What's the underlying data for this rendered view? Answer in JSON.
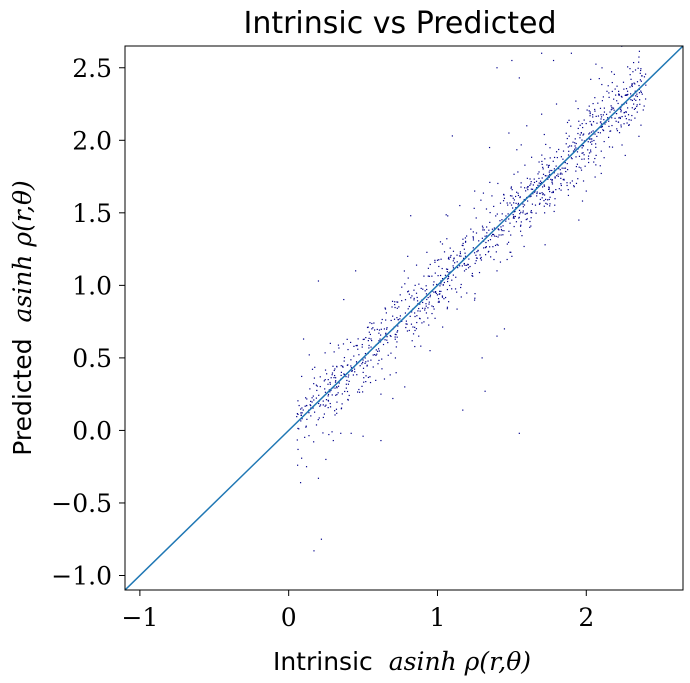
{
  "chart_data": {
    "type": "scatter",
    "title": "Intrinsic vs Predicted",
    "xlabel": {
      "prefix": "Intrinsic",
      "math": "asinh ρ(r,θ)"
    },
    "ylabel": {
      "prefix": "Predicted",
      "math": "asinh ρ(r,θ)"
    },
    "xlim": [
      -1.1,
      2.65
    ],
    "ylim": [
      -1.1,
      2.65
    ],
    "xticks": [
      {
        "value": -1,
        "label": "−1"
      },
      {
        "value": 0,
        "label": "0"
      },
      {
        "value": 1,
        "label": "1"
      },
      {
        "value": 2,
        "label": "2"
      }
    ],
    "yticks": [
      {
        "value": -1.0,
        "label": "−1.0"
      },
      {
        "value": -0.5,
        "label": "−0.5"
      },
      {
        "value": 0.0,
        "label": "0.0"
      },
      {
        "value": 0.5,
        "label": "0.5"
      },
      {
        "value": 1.0,
        "label": "1.0"
      },
      {
        "value": 1.5,
        "label": "1.5"
      },
      {
        "value": 2.0,
        "label": "2.0"
      },
      {
        "value": 2.5,
        "label": "2.5"
      }
    ],
    "grid": false,
    "reference_line": {
      "from": [
        -1.1,
        -1.1
      ],
      "to": [
        2.65,
        2.65
      ],
      "color": "#1f77b4"
    },
    "points_color": "#00008b",
    "points": [
      [
        0.06,
        -0.24
      ],
      [
        0.08,
        -0.36
      ],
      [
        0.12,
        -0.25
      ],
      [
        0.17,
        -0.83
      ],
      [
        0.22,
        -0.75
      ],
      [
        0.2,
        -0.33
      ],
      [
        0.25,
        -0.2
      ],
      [
        0.3,
        -0.07
      ],
      [
        0.35,
        -0.02
      ],
      [
        0.42,
        -0.02
      ],
      [
        0.5,
        -0.04
      ],
      [
        0.62,
        -0.07
      ],
      [
        1.17,
        0.14
      ],
      [
        1.55,
        -0.02
      ],
      [
        0.2,
        1.03
      ],
      [
        0.28,
        0.6
      ],
      [
        0.1,
        0.63
      ],
      [
        0.45,
        1.1
      ],
      [
        0.8,
        1.2
      ],
      [
        1.1,
        2.03
      ],
      [
        0.82,
        1.48
      ],
      [
        1.4,
        2.5
      ],
      [
        1.5,
        2.55
      ],
      [
        1.55,
        2.43
      ],
      [
        1.7,
        2.6
      ],
      [
        1.78,
        2.55
      ],
      [
        1.9,
        2.6
      ],
      [
        2.03,
        2.42
      ],
      [
        1.95,
        1.45
      ],
      [
        2.0,
        1.65
      ],
      [
        2.12,
        1.88
      ],
      [
        2.15,
        2.02
      ],
      [
        2.22,
        2.31
      ],
      [
        2.25,
        2.4
      ],
      [
        2.3,
        2.28
      ],
      [
        2.33,
        2.22
      ],
      [
        2.37,
        2.33
      ],
      [
        2.4,
        2.38
      ],
      [
        1.32,
        0.27
      ],
      [
        1.4,
        0.65
      ],
      [
        1.45,
        0.7
      ],
      [
        1.3,
        0.5
      ],
      [
        0.55,
        0.33
      ],
      [
        0.62,
        0.25
      ],
      [
        0.7,
        0.22
      ],
      [
        0.78,
        0.3
      ],
      [
        0.95,
        0.55
      ],
      [
        0.85,
        1.0
      ],
      [
        1.02,
        1.3
      ],
      [
        1.15,
        1.55
      ],
      [
        1.25,
        1.65
      ],
      [
        1.35,
        1.95
      ],
      [
        1.48,
        2.05
      ],
      [
        1.6,
        2.1
      ],
      [
        1.7,
        2.18
      ],
      [
        1.8,
        2.25
      ],
      [
        1.62,
        1.4
      ],
      [
        1.5,
        1.2
      ],
      [
        1.4,
        1.1
      ],
      [
        1.72,
        1.5
      ],
      [
        1.88,
        1.62
      ],
      [
        2.05,
        1.85
      ]
    ],
    "noise_points_count": 1150
  }
}
